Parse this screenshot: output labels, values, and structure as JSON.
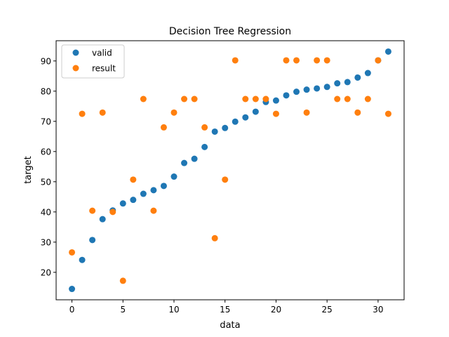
{
  "chart_data": {
    "type": "scatter",
    "title": "Decision Tree Regression",
    "xlabel": "data",
    "ylabel": "target",
    "xlim": [
      -1.55,
      32.55
    ],
    "ylim": [
      10.9,
      96.7
    ],
    "xticks": [
      0,
      5,
      10,
      15,
      20,
      25,
      30
    ],
    "yticks": [
      20,
      30,
      40,
      50,
      60,
      70,
      80,
      90
    ],
    "grid": false,
    "legend_position": "top-left",
    "series": [
      {
        "name": "valid",
        "color": "#1f77b4",
        "x": [
          0,
          1,
          2,
          3,
          4,
          5,
          6,
          7,
          8,
          9,
          10,
          11,
          12,
          13,
          14,
          15,
          16,
          17,
          18,
          19,
          20,
          21,
          22,
          23,
          24,
          25,
          26,
          27,
          28,
          29,
          30,
          31
        ],
        "y": [
          14.5,
          24.1,
          30.7,
          37.6,
          40.5,
          42.8,
          44.0,
          46.0,
          47.2,
          48.6,
          51.7,
          56.2,
          57.6,
          61.5,
          66.6,
          67.8,
          69.9,
          71.3,
          73.2,
          76.4,
          76.9,
          78.6,
          79.8,
          80.5,
          80.9,
          81.4,
          82.6,
          83.0,
          84.5,
          86.0,
          90.2,
          93.1
        ]
      },
      {
        "name": "result",
        "color": "#ff7f0e",
        "x": [
          0,
          1,
          2,
          3,
          4,
          5,
          6,
          7,
          8,
          9,
          10,
          11,
          12,
          13,
          14,
          15,
          16,
          17,
          18,
          19,
          20,
          21,
          22,
          23,
          24,
          25,
          26,
          27,
          28,
          29,
          30,
          31
        ],
        "y": [
          26.6,
          72.5,
          40.4,
          72.9,
          40.0,
          17.2,
          50.7,
          77.4,
          40.4,
          68.0,
          72.9,
          77.4,
          77.4,
          68.0,
          31.3,
          50.7,
          90.2,
          77.4,
          77.4,
          77.4,
          72.5,
          90.2,
          90.2,
          72.9,
          90.2,
          90.2,
          77.4,
          77.4,
          72.9,
          77.4,
          90.2,
          72.5
        ]
      }
    ]
  }
}
